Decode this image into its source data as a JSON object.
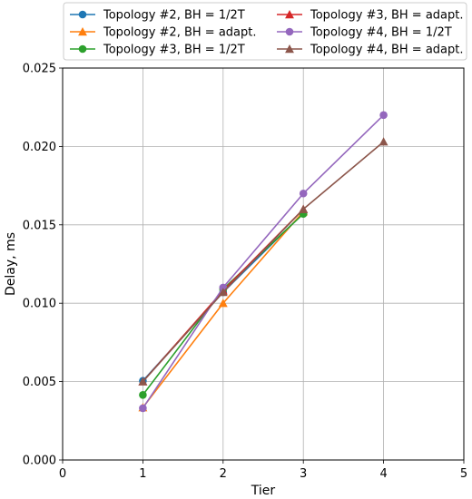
{
  "chart_data": {
    "type": "line",
    "title": "",
    "xlabel": "Tier",
    "ylabel": "Delay, ms",
    "xlim": [
      0,
      5
    ],
    "ylim": [
      0,
      0.025
    ],
    "xticks": [
      "0",
      "1",
      "2",
      "3",
      "4",
      "5"
    ],
    "yticks": [
      "0.000",
      "0.005",
      "0.010",
      "0.015",
      "0.020",
      "0.025"
    ],
    "grid": true,
    "legend_position": "top",
    "series": [
      {
        "name": "Topology #2, BH = 1/2T",
        "color": "#1f77b4",
        "marker": "circle",
        "x": [
          1,
          2,
          3
        ],
        "y": [
          0.00505,
          0.0107,
          0.01575
        ]
      },
      {
        "name": "Topology #2, BH = adapt.",
        "color": "#ff7f0e",
        "marker": "triangle",
        "x": [
          1,
          2,
          3
        ],
        "y": [
          0.00335,
          0.01,
          0.01585
        ]
      },
      {
        "name": "Topology #3, BH = 1/2T",
        "color": "#2ca02c",
        "marker": "circle",
        "x": [
          1,
          2,
          3
        ],
        "y": [
          0.00415,
          0.0109,
          0.0157
        ]
      },
      {
        "name": "Topology #3, BH = adapt.",
        "color": "#d62728",
        "marker": "triangle",
        "x": [
          1,
          2,
          3
        ],
        "y": [
          0.005,
          0.0108,
          0.016
        ]
      },
      {
        "name": "Topology #4, BH = 1/2T",
        "color": "#9467bd",
        "marker": "circle",
        "x": [
          1,
          2,
          3,
          4
        ],
        "y": [
          0.0033,
          0.011,
          0.017,
          0.022
        ]
      },
      {
        "name": "Topology #4, BH = adapt.",
        "color": "#8c564b",
        "marker": "triangle",
        "x": [
          1,
          2,
          3,
          4
        ],
        "y": [
          0.005,
          0.0107,
          0.016,
          0.0203
        ]
      }
    ]
  }
}
